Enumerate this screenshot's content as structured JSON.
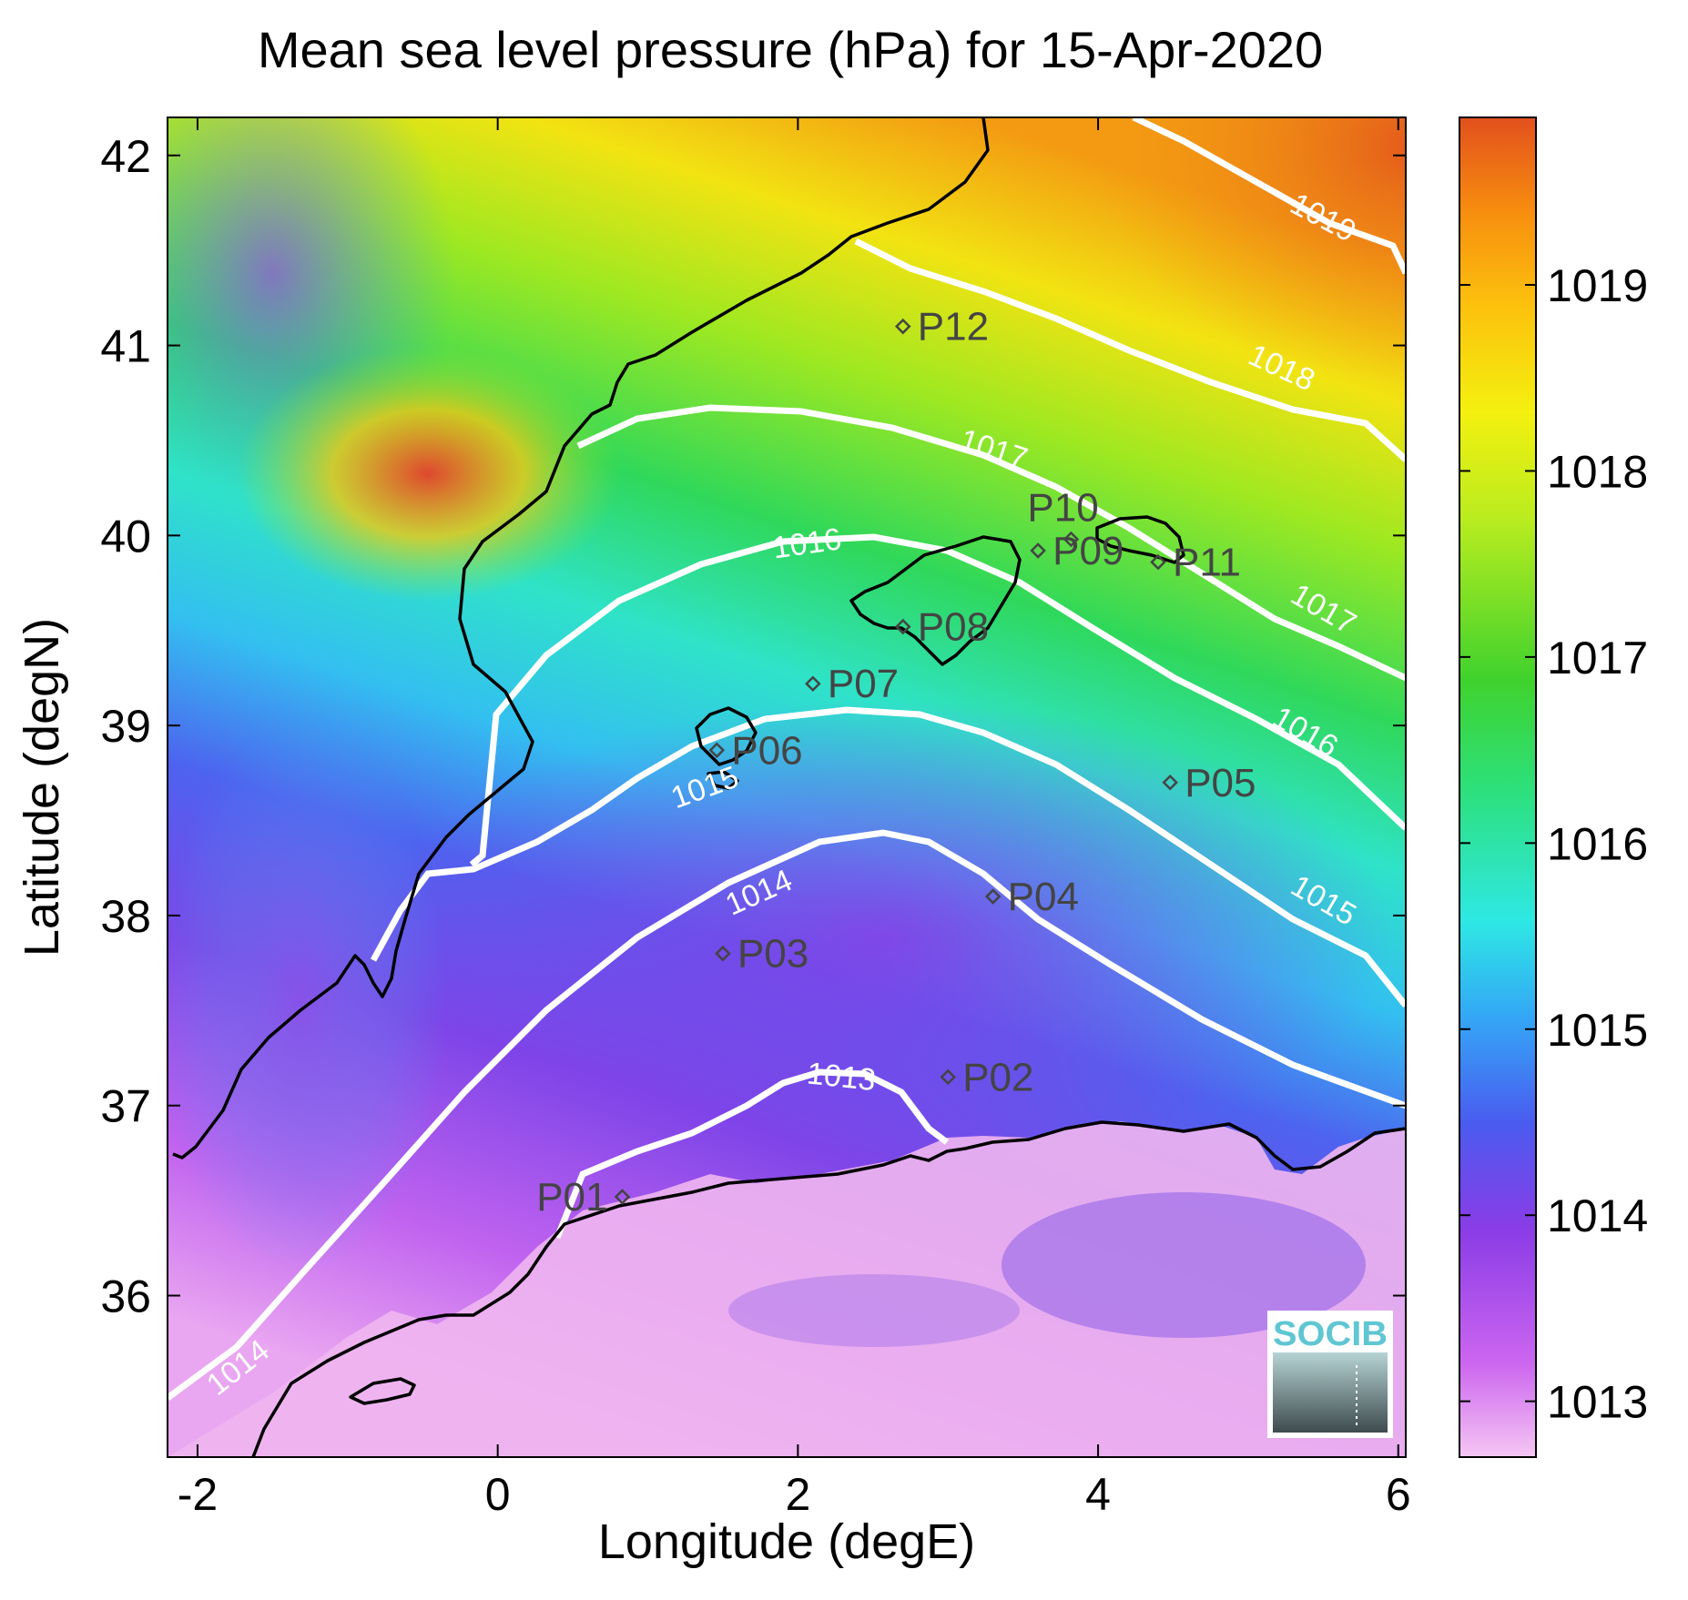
{
  "title": "Mean sea level pressure (hPa) for 15-Apr-2020",
  "x_axis": {
    "label": "Longitude (degE)",
    "ticks": [
      "-2",
      "0",
      "2",
      "4",
      "6"
    ],
    "range": [
      -2.2,
      6.05
    ]
  },
  "y_axis": {
    "label": "Latitude (degN)",
    "ticks": [
      "36",
      "37",
      "38",
      "39",
      "40",
      "41",
      "42"
    ],
    "range": [
      35.15,
      42.2
    ]
  },
  "colorbar": {
    "ticks": [
      "1013",
      "1014",
      "1015",
      "1016",
      "1017",
      "1018",
      "1019"
    ],
    "range": [
      1012.7,
      1019.9
    ],
    "colormap": [
      "#f5c6f2",
      "#cc66f0",
      "#8a3ce6",
      "#4a5cf0",
      "#33a8f5",
      "#2ee8e4",
      "#2de07a",
      "#3fd22d",
      "#b9ec1f",
      "#f4f00f",
      "#fcc10d",
      "#f78d0f",
      "#e2501d"
    ]
  },
  "stations": [
    {
      "id": "P01",
      "lon": 0.83,
      "lat": 36.52
    },
    {
      "id": "P02",
      "lon": 3.0,
      "lat": 37.15
    },
    {
      "id": "P03",
      "lon": 1.5,
      "lat": 37.8
    },
    {
      "id": "P04",
      "lon": 3.3,
      "lat": 38.1
    },
    {
      "id": "P05",
      "lon": 4.48,
      "lat": 38.7
    },
    {
      "id": "P06",
      "lon": 1.46,
      "lat": 38.87
    },
    {
      "id": "P07",
      "lon": 2.1,
      "lat": 39.22
    },
    {
      "id": "P08",
      "lon": 2.7,
      "lat": 39.52
    },
    {
      "id": "P09",
      "lon": 3.6,
      "lat": 39.92
    },
    {
      "id": "P10",
      "lon": 3.82,
      "lat": 39.98
    },
    {
      "id": "P11",
      "lon": 4.4,
      "lat": 39.86
    },
    {
      "id": "P12",
      "lon": 2.7,
      "lat": 41.1
    }
  ],
  "isobars": [
    {
      "value": "1013",
      "color": "#ffffff"
    },
    {
      "value": "1014",
      "color": "#ffffff"
    },
    {
      "value": "1015",
      "color": "#ffffff"
    },
    {
      "value": "1016",
      "color": "#ffffff"
    },
    {
      "value": "1017",
      "color": "#ffffff"
    },
    {
      "value": "1018",
      "color": "#ffffff"
    },
    {
      "value": "1019",
      "color": "#ffffff"
    }
  ],
  "isobar_labels": [
    "1013",
    "1014",
    "1014",
    "1015",
    "1015",
    "1016",
    "1016",
    "1017",
    "1017",
    "1018",
    "1019"
  ],
  "coastline_color": "#000000",
  "logo": {
    "text": "SOCIB",
    "color": "#5fc6d2"
  }
}
